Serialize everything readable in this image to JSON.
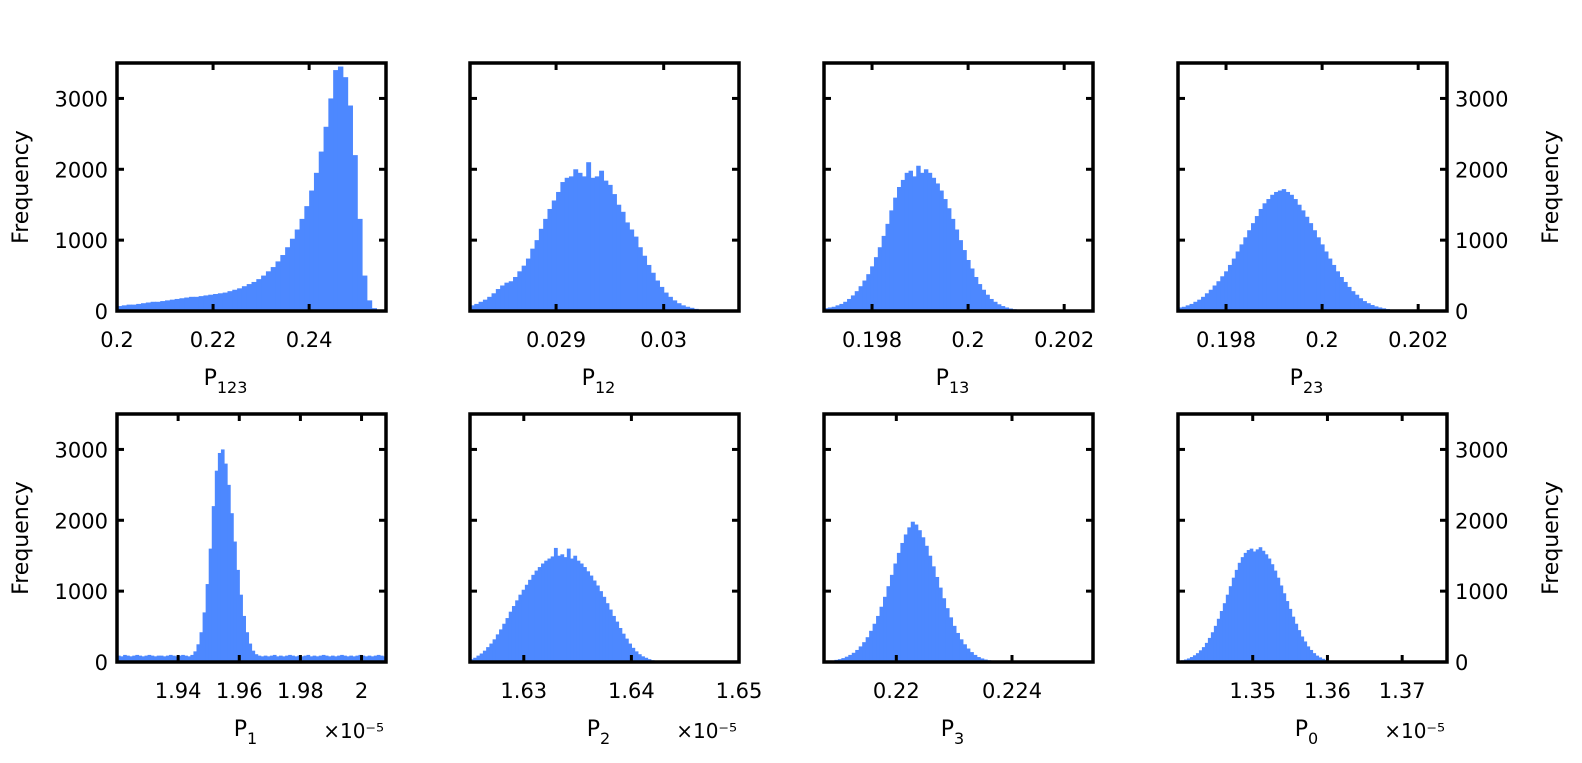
{
  "colors": {
    "bar": "#4d88ff",
    "axes": "#000000",
    "background": "#ffffff"
  },
  "chart_data": [
    {
      "type": "bar",
      "panel": "P123",
      "xlim": [
        0.2,
        0.256
      ],
      "ylim": [
        0,
        3500
      ],
      "xticks": [
        0.2,
        0.22,
        0.24
      ],
      "xtick_labels": [
        "0.2",
        "0.22",
        "0.24"
      ],
      "yticks": [
        0,
        1000,
        2000,
        3000
      ],
      "ytick_labels": [
        "0",
        "1000",
        "2000",
        "3000"
      ],
      "yaxis_side": "left",
      "ylabel": "Frequency",
      "xlabel": "P",
      "xlabel_sub": "123",
      "exponent": "",
      "bin_start": 0.2,
      "bin_width": 0.001,
      "values": [
        70,
        80,
        90,
        90,
        100,
        110,
        120,
        130,
        130,
        140,
        150,
        160,
        170,
        180,
        190,
        200,
        200,
        210,
        220,
        230,
        240,
        250,
        260,
        280,
        300,
        320,
        350,
        380,
        410,
        450,
        500,
        560,
        620,
        700,
        790,
        900,
        1020,
        1150,
        1300,
        1480,
        1700,
        1950,
        2250,
        2600,
        3000,
        3400,
        3450,
        3300,
        2900,
        2200,
        1300,
        500,
        150,
        40,
        0,
        0
      ],
      "grid": false
    },
    {
      "type": "bar",
      "panel": "P12",
      "xlim": [
        0.0282,
        0.0307
      ],
      "ylim": [
        0,
        3500
      ],
      "xticks": [
        0.029,
        0.03
      ],
      "xtick_labels": [
        "0.029",
        "0.03"
      ],
      "yticks": [
        0,
        1000,
        2000,
        3000
      ],
      "ytick_labels": [
        "",
        "",
        "",
        ""
      ],
      "yaxis_side": "left",
      "ylabel": "",
      "xlabel": "P",
      "xlabel_sub": "12",
      "exponent": "",
      "bin_start": 0.0282,
      "bin_width": 4e-05,
      "values": [
        80,
        100,
        130,
        160,
        200,
        250,
        310,
        360,
        400,
        420,
        480,
        560,
        640,
        740,
        880,
        1000,
        1160,
        1300,
        1440,
        1560,
        1680,
        1820,
        1880,
        1900,
        2000,
        1950,
        1900,
        2100,
        1880,
        1900,
        1980,
        1840,
        1780,
        1650,
        1500,
        1400,
        1250,
        1150,
        1050,
        900,
        780,
        650,
        540,
        430,
        340,
        260,
        200,
        150,
        110,
        80,
        60,
        45,
        30,
        20,
        15,
        10,
        5,
        0,
        0,
        0,
        0,
        0,
        0
      ],
      "grid": false
    },
    {
      "type": "bar",
      "panel": "P13",
      "xlim": [
        0.197,
        0.2026
      ],
      "ylim": [
        0,
        3500
      ],
      "xticks": [
        0.198,
        0.2,
        0.202
      ],
      "xtick_labels": [
        "0.198",
        "0.2",
        "0.202"
      ],
      "yticks": [
        0,
        1000,
        2000,
        3000
      ],
      "ytick_labels": [
        "",
        "",
        "",
        ""
      ],
      "yaxis_side": "left",
      "ylabel": "",
      "xlabel": "P",
      "xlabel_sub": "13",
      "exponent": "",
      "bin_start": 0.197,
      "bin_width": 8e-05,
      "values": [
        40,
        50,
        60,
        80,
        100,
        130,
        170,
        220,
        280,
        350,
        430,
        520,
        630,
        760,
        900,
        1060,
        1230,
        1420,
        1600,
        1750,
        1850,
        1950,
        1980,
        1900,
        2050,
        1950,
        2000,
        1950,
        1880,
        1800,
        1700,
        1580,
        1450,
        1300,
        1150,
        1000,
        860,
        720,
        600,
        480,
        380,
        300,
        230,
        170,
        130,
        95,
        70,
        50,
        35,
        25,
        18,
        12,
        8,
        5,
        3,
        2,
        1,
        0,
        0,
        0,
        0,
        0,
        0,
        0,
        0,
        0,
        0,
        0,
        0,
        0
      ],
      "grid": false
    },
    {
      "type": "bar",
      "panel": "P23",
      "xlim": [
        0.197,
        0.2026
      ],
      "ylim": [
        0,
        3500
      ],
      "xticks": [
        0.198,
        0.2,
        0.202
      ],
      "xtick_labels": [
        "0.198",
        "0.2",
        "0.202"
      ],
      "yticks": [
        0,
        1000,
        2000,
        3000
      ],
      "ytick_labels": [
        "0",
        "1000",
        "2000",
        "3000"
      ],
      "yaxis_side": "right",
      "ylabel": "Frequency",
      "xlabel": "P",
      "xlabel_sub": "23",
      "exponent": "",
      "bin_start": 0.197,
      "bin_width": 8e-05,
      "values": [
        50,
        60,
        80,
        100,
        130,
        160,
        200,
        250,
        300,
        360,
        420,
        490,
        560,
        650,
        740,
        840,
        940,
        1040,
        1140,
        1240,
        1340,
        1440,
        1520,
        1580,
        1640,
        1680,
        1700,
        1720,
        1680,
        1640,
        1580,
        1500,
        1420,
        1330,
        1240,
        1140,
        1040,
        940,
        840,
        740,
        650,
        560,
        480,
        410,
        340,
        280,
        230,
        180,
        140,
        110,
        85,
        65,
        50,
        38,
        28,
        20,
        14,
        10,
        6,
        4,
        2,
        1,
        0,
        0,
        0,
        0,
        0,
        0,
        0,
        0
      ],
      "grid": false
    },
    {
      "type": "bar",
      "panel": "P1",
      "xlim": [
        1.92,
        2.008
      ],
      "ylim": [
        0,
        3500
      ],
      "xticks": [
        1.94,
        1.96,
        1.98,
        2.0
      ],
      "xtick_labels": [
        "1.94",
        "1.96",
        "1.98",
        "2"
      ],
      "yticks": [
        0,
        1000,
        2000,
        3000
      ],
      "ytick_labels": [
        "0",
        "1000",
        "2000",
        "3000"
      ],
      "yaxis_side": "left",
      "ylabel": "Frequency",
      "xlabel": "P",
      "xlabel_sub": "1",
      "exponent": "×10⁻⁵",
      "bin_start": 1.92,
      "bin_width": 0.001,
      "values": [
        90,
        80,
        100,
        90,
        80,
        90,
        100,
        90,
        80,
        90,
        100,
        90,
        80,
        90,
        90,
        80,
        90,
        100,
        90,
        80,
        90,
        100,
        90,
        80,
        100,
        150,
        250,
        420,
        700,
        1100,
        1600,
        2200,
        2700,
        2950,
        3000,
        2800,
        2500,
        2100,
        1700,
        1300,
        950,
        650,
        420,
        260,
        160,
        110,
        90,
        80,
        90,
        80,
        90,
        100,
        80,
        90,
        80,
        90,
        100,
        90,
        80,
        90,
        80,
        90,
        100,
        80,
        90,
        80,
        90,
        100,
        90,
        80,
        90,
        80,
        90,
        100,
        90,
        80,
        90,
        80,
        90,
        100,
        90,
        80,
        90,
        80,
        90,
        100,
        90,
        80
      ],
      "grid": false
    },
    {
      "type": "bar",
      "panel": "P2",
      "xlim": [
        1.625,
        1.65
      ],
      "ylim": [
        0,
        3500
      ],
      "xticks": [
        1.63,
        1.64,
        1.65
      ],
      "xtick_labels": [
        "1.63",
        "1.64",
        "1.65"
      ],
      "yticks": [
        0,
        1000,
        2000,
        3000
      ],
      "ytick_labels": [
        "",
        "",
        "",
        ""
      ],
      "yaxis_side": "left",
      "ylabel": "",
      "xlabel": "P",
      "xlabel_sub": "2",
      "exponent": "×10⁻⁵",
      "bin_start": 1.625,
      "bin_width": 0.0003,
      "values": [
        40,
        60,
        90,
        120,
        160,
        210,
        260,
        320,
        390,
        460,
        540,
        620,
        710,
        790,
        870,
        950,
        1020,
        1090,
        1160,
        1230,
        1290,
        1340,
        1390,
        1430,
        1460,
        1490,
        1610,
        1500,
        1520,
        1480,
        1600,
        1460,
        1500,
        1430,
        1390,
        1340,
        1280,
        1220,
        1150,
        1080,
        1000,
        920,
        830,
        740,
        650,
        570,
        480,
        400,
        330,
        260,
        200,
        150,
        110,
        80,
        60,
        40,
        25,
        15,
        10,
        5,
        2,
        1,
        0,
        0,
        0,
        0,
        0,
        0,
        0,
        0,
        0,
        0,
        0,
        0,
        0,
        0,
        0,
        0,
        0,
        0,
        0,
        0,
        0
      ],
      "grid": false
    },
    {
      "type": "bar",
      "panel": "P3",
      "xlim": [
        0.2175,
        0.2268
      ],
      "ylim": [
        0,
        3500
      ],
      "xticks": [
        0.22,
        0.224
      ],
      "xtick_labels": [
        "0.22",
        "0.224"
      ],
      "yticks": [
        0,
        1000,
        2000,
        3000
      ],
      "ytick_labels": [
        "",
        "",
        "",
        ""
      ],
      "yaxis_side": "left",
      "ylabel": "",
      "xlabel": "P",
      "xlabel_sub": "3",
      "exponent": "",
      "bin_start": 0.2175,
      "bin_width": 0.00012,
      "values": [
        10,
        15,
        20,
        30,
        40,
        55,
        75,
        100,
        130,
        170,
        220,
        280,
        350,
        440,
        540,
        650,
        780,
        920,
        1070,
        1230,
        1390,
        1540,
        1680,
        1800,
        1900,
        1980,
        1940,
        1860,
        1760,
        1640,
        1500,
        1350,
        1200,
        1050,
        900,
        760,
        630,
        510,
        410,
        320,
        250,
        190,
        140,
        100,
        70,
        50,
        35,
        25,
        18,
        12,
        8,
        5,
        3,
        2,
        1,
        0,
        0,
        0,
        0,
        0,
        0,
        0,
        0,
        0,
        0,
        0,
        0,
        0,
        0,
        0,
        0,
        0,
        0,
        0,
        0,
        0,
        0,
        0,
        0
      ],
      "grid": false
    },
    {
      "type": "bar",
      "panel": "P0",
      "xlim": [
        1.34,
        1.376
      ],
      "ylim": [
        0,
        3500
      ],
      "xticks": [
        1.35,
        1.36,
        1.37
      ],
      "xtick_labels": [
        "1.35",
        "1.36",
        "1.37"
      ],
      "yticks": [
        0,
        1000,
        2000,
        3000
      ],
      "ytick_labels": [
        "0",
        "1000",
        "2000",
        "3000"
      ],
      "yaxis_side": "right",
      "ylabel": "Frequency",
      "xlabel": "P",
      "xlabel_sub": "0",
      "exponent": "×10⁻⁵",
      "bin_start": 1.34,
      "bin_width": 0.0004,
      "values": [
        15,
        25,
        35,
        50,
        70,
        95,
        125,
        165,
        210,
        270,
        340,
        420,
        510,
        610,
        720,
        830,
        950,
        1070,
        1190,
        1300,
        1400,
        1480,
        1540,
        1580,
        1600,
        1560,
        1590,
        1620,
        1570,
        1520,
        1460,
        1380,
        1290,
        1190,
        1080,
        970,
        860,
        750,
        640,
        540,
        450,
        360,
        290,
        220,
        170,
        125,
        90,
        65,
        45,
        30,
        20,
        12,
        8,
        5,
        3,
        2,
        1,
        0,
        0,
        0,
        0,
        0,
        0,
        0,
        0,
        0,
        0,
        0,
        0,
        0,
        0,
        0,
        0,
        0,
        0,
        0,
        0,
        0,
        0,
        0,
        0,
        0,
        0,
        0,
        0,
        0,
        0,
        0,
        0,
        0,
        0
      ],
      "grid": false
    }
  ]
}
